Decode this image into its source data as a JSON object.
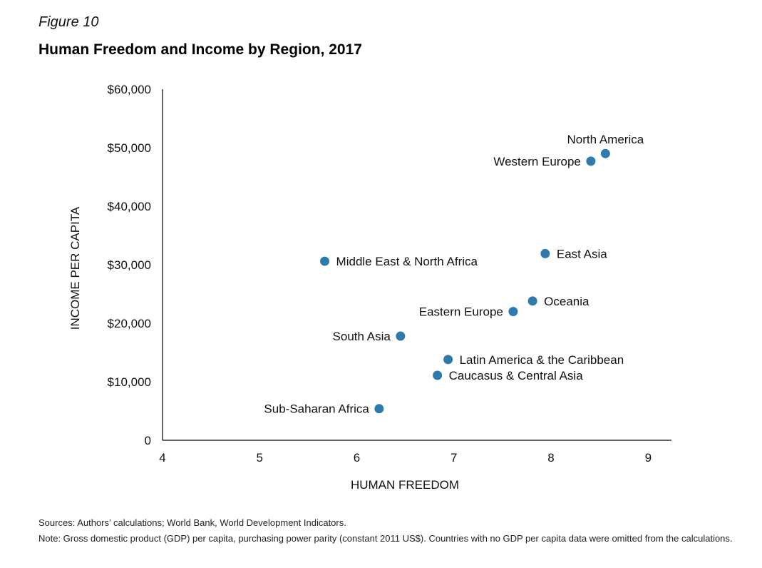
{
  "figure_label": "Figure 10",
  "title": "Human Freedom and Income by Region, 2017",
  "sources": "Sources: Authors’ calculations; World Bank, World Development Indicators.",
  "note": "Note: Gross domestic product (GDP) per capita, purchasing power parity (constant 2011 US$). Countries with no GDP per capita data were omitted from the calculations.",
  "colors": {
    "point": "#2e7aad",
    "axis": "#000000",
    "text": "#111111"
  },
  "chart_data": {
    "type": "scatter",
    "title": "Human Freedom and Income by Region, 2017",
    "xlabel": "HUMAN FREEDOM",
    "ylabel": "INCOME PER CAPITA",
    "xlim": [
      4,
      9.24
    ],
    "ylim": [
      0,
      60000
    ],
    "xticks": [
      4,
      5,
      6,
      7,
      8,
      9
    ],
    "xtick_labels": [
      "4",
      "5",
      "6",
      "7",
      "8",
      "9"
    ],
    "yticks": [
      0,
      10000,
      20000,
      30000,
      40000,
      50000,
      60000
    ],
    "ytick_labels": [
      "0",
      "$10,000",
      "$20,000",
      "$30,000",
      "$40,000",
      "$50,000",
      "$60,000"
    ],
    "grid": false,
    "points": [
      {
        "label": "North America",
        "x": 8.56,
        "y": 49000,
        "label_pos": "above"
      },
      {
        "label": "Western Europe",
        "x": 8.41,
        "y": 47700,
        "label_pos": "left"
      },
      {
        "label": "East Asia",
        "x": 7.94,
        "y": 31900,
        "label_pos": "right"
      },
      {
        "label": "Middle East & North Africa",
        "x": 5.67,
        "y": 30600,
        "label_pos": "right"
      },
      {
        "label": "Oceania",
        "x": 7.81,
        "y": 23800,
        "label_pos": "right"
      },
      {
        "label": "Eastern Europe",
        "x": 7.61,
        "y": 22000,
        "label_pos": "left"
      },
      {
        "label": "South Asia",
        "x": 6.45,
        "y": 17800,
        "label_pos": "left"
      },
      {
        "label": "Latin America & the Caribbean",
        "x": 6.94,
        "y": 13800,
        "label_pos": "right"
      },
      {
        "label": "Caucasus & Central Asia",
        "x": 6.83,
        "y": 11100,
        "label_pos": "right"
      },
      {
        "label": "Sub-Saharan Africa",
        "x": 6.23,
        "y": 5400,
        "label_pos": "left"
      }
    ]
  }
}
